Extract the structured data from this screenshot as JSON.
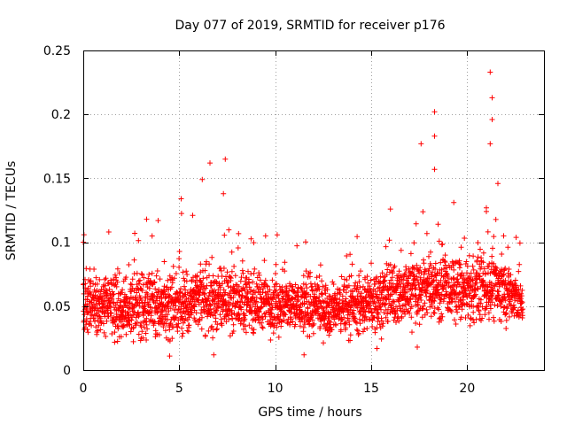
{
  "chart_data": {
    "type": "scatter",
    "title": "Day 077 of 2019, SRMTID for receiver p176",
    "xlabel": "GPS time / hours",
    "ylabel": "SRMTID / TECUs",
    "xlim": [
      0,
      24
    ],
    "ylim": [
      0,
      0.25
    ],
    "grid": true,
    "marker": "+",
    "x_ticks": [
      0,
      5,
      10,
      15,
      20
    ],
    "x_tick_labels": [
      "0",
      "5",
      "10",
      "15",
      "20"
    ],
    "y_ticks": [
      0,
      0.05,
      0.1,
      0.15,
      0.2,
      0.25
    ],
    "y_tick_labels": [
      "0",
      "0.05",
      "0.1",
      "0.15",
      "0.2",
      "0.25"
    ],
    "series": [
      {
        "name": "SRMTID",
        "color": "#ff0000",
        "x_range": [
          0,
          22.9
        ],
        "sample_spacing_hours": 0.008,
        "baseline_profile": {
          "hours": [
            0,
            2,
            4,
            6,
            8,
            10,
            12,
            13,
            14,
            15,
            16,
            17,
            18,
            19,
            20,
            21,
            22,
            22.9
          ],
          "median": [
            0.052,
            0.048,
            0.05,
            0.054,
            0.055,
            0.052,
            0.049,
            0.048,
            0.05,
            0.053,
            0.058,
            0.062,
            0.066,
            0.064,
            0.06,
            0.066,
            0.062,
            0.052
          ],
          "spread": [
            0.02,
            0.02,
            0.02,
            0.021,
            0.02,
            0.019,
            0.018,
            0.017,
            0.018,
            0.019,
            0.02,
            0.022,
            0.022,
            0.02,
            0.02,
            0.022,
            0.02,
            0.018
          ]
        },
        "peaks": [
          {
            "x": 0.0,
            "y": 0.1
          },
          {
            "x": 3.3,
            "y": 0.118
          },
          {
            "x": 3.9,
            "y": 0.117
          },
          {
            "x": 5.1,
            "y": 0.134
          },
          {
            "x": 5.7,
            "y": 0.121
          },
          {
            "x": 6.2,
            "y": 0.149
          },
          {
            "x": 6.6,
            "y": 0.162
          },
          {
            "x": 7.4,
            "y": 0.165
          },
          {
            "x": 7.3,
            "y": 0.138
          },
          {
            "x": 9.5,
            "y": 0.105
          },
          {
            "x": 16.0,
            "y": 0.126
          },
          {
            "x": 17.6,
            "y": 0.177
          },
          {
            "x": 18.3,
            "y": 0.202
          },
          {
            "x": 18.3,
            "y": 0.183
          },
          {
            "x": 18.3,
            "y": 0.157
          },
          {
            "x": 19.3,
            "y": 0.131
          },
          {
            "x": 21.0,
            "y": 0.124
          },
          {
            "x": 21.2,
            "y": 0.233
          },
          {
            "x": 21.3,
            "y": 0.213
          },
          {
            "x": 21.3,
            "y": 0.196
          },
          {
            "x": 21.2,
            "y": 0.177
          },
          {
            "x": 21.6,
            "y": 0.146
          },
          {
            "x": 21.9,
            "y": 0.105
          },
          {
            "x": 6.8,
            "y": 0.012
          },
          {
            "x": 4.5,
            "y": 0.011
          },
          {
            "x": 11.5,
            "y": 0.012
          },
          {
            "x": 15.3,
            "y": 0.017
          },
          {
            "x": 17.4,
            "y": 0.018
          }
        ]
      }
    ]
  }
}
